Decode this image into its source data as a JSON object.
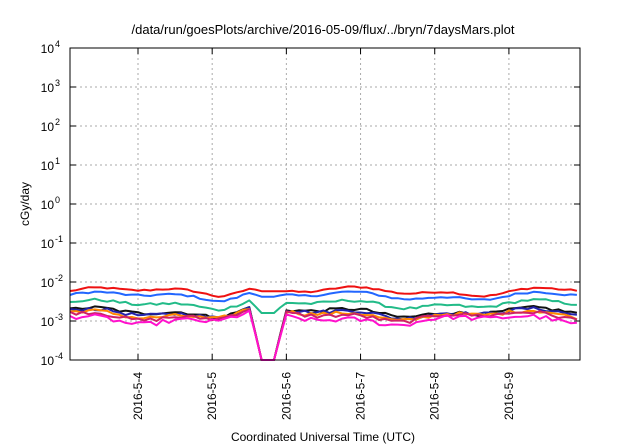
{
  "chart_data": {
    "type": "line",
    "title": "/data/run/goesPlots/archive/2016-05-09/flux/../bryn/7daysMars.plot",
    "xlabel": "Coordinated Universal Time (UTC)",
    "ylabel": "cGy/day",
    "yscale": "log",
    "ylim": [
      0.0001,
      10000
    ],
    "xlim": [
      "2016-05-03T02:00",
      "2016-05-09T23:00"
    ],
    "y_ticks": [
      {
        "value": 0.0001,
        "base": "10",
        "exp": "-4"
      },
      {
        "value": 0.001,
        "base": "10",
        "exp": "-3"
      },
      {
        "value": 0.01,
        "base": "10",
        "exp": "-2"
      },
      {
        "value": 0.1,
        "base": "10",
        "exp": "-1"
      },
      {
        "value": 1,
        "base": "10",
        "exp": "0"
      },
      {
        "value": 10,
        "base": "10",
        "exp": "1"
      },
      {
        "value": 100,
        "base": "10",
        "exp": "2"
      },
      {
        "value": 1000,
        "base": "10",
        "exp": "3"
      },
      {
        "value": 10000,
        "base": "10",
        "exp": "4"
      }
    ],
    "x_ticks": [
      {
        "value": "2016-05-04T00:00",
        "label": "2016-5-4"
      },
      {
        "value": "2016-05-05T00:00",
        "label": "2016-5-5"
      },
      {
        "value": "2016-05-06T00:00",
        "label": "2016-5-6"
      },
      {
        "value": "2016-05-07T00:00",
        "label": "2016-5-7"
      },
      {
        "value": "2016-05-08T00:00",
        "label": "2016-5-8"
      },
      {
        "value": "2016-05-09T00:00",
        "label": "2016-5-9"
      }
    ],
    "grid": true,
    "legend": "none",
    "series": [
      {
        "color": "#ee1111",
        "base": 0.0058,
        "dip": 0.0058,
        "noise": 0.05
      },
      {
        "color": "#2266ff",
        "base": 0.0044,
        "dip": 0.0042,
        "noise": 0.06
      },
      {
        "color": "#22bb88",
        "base": 0.0027,
        "dip": 0.0016,
        "noise": 0.08
      },
      {
        "color": "#111111",
        "base": 0.0017,
        "dip": 0.0001,
        "noise": 0.1
      },
      {
        "color": "#2222aa",
        "base": 0.0016,
        "dip": 0.0001,
        "noise": 0.1
      },
      {
        "color": "#ff8800",
        "base": 0.00145,
        "dip": 0.0001,
        "noise": 0.11
      },
      {
        "color": "#cc2266",
        "base": 0.00135,
        "dip": 0.0001,
        "noise": 0.12
      },
      {
        "color": "#ff11cc",
        "base": 0.0011,
        "dip": 0.0001,
        "noise": 0.14
      }
    ],
    "features": {
      "dip_time": "2016-05-05T18:00",
      "bump_time": "2016-05-05T12:00",
      "bump_factor": 1.35
    }
  }
}
